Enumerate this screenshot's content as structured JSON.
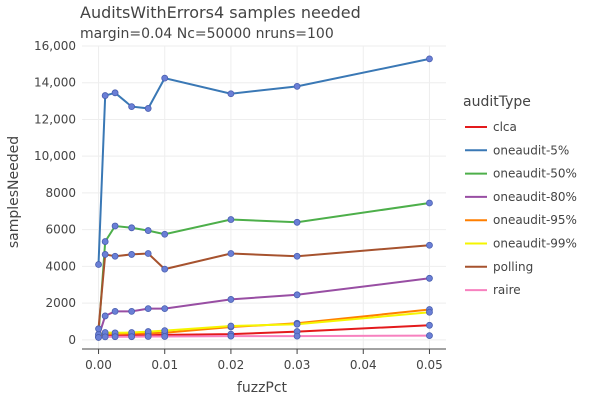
{
  "chart_data": {
    "type": "line",
    "title": "AuditsWithErrors4 samples needed",
    "subtitle": "margin=0.04 Nc=50000 nruns=100",
    "xlabel": "fuzzPct",
    "ylabel": "samplesNeeded",
    "xlim": [
      -0.0025,
      0.0525
    ],
    "ylim": [
      -500,
      16000
    ],
    "xticks": [
      0,
      0.01,
      0.02,
      0.03,
      0.04,
      0.05
    ],
    "xtick_labels": [
      "0.00",
      "0.01",
      "0.02",
      "0.03",
      "0.04",
      "0.05"
    ],
    "yticks": [
      0,
      2000,
      4000,
      6000,
      8000,
      10000,
      12000,
      14000,
      16000
    ],
    "ytick_labels": [
      "0",
      "2000",
      "4000",
      "6000",
      "8000",
      "10,000",
      "12,000",
      "14,000",
      "16,000"
    ],
    "legend_title": "auditType",
    "legend_position": "right",
    "grid": true,
    "x": [
      0,
      0.001,
      0.0025,
      0.005,
      0.0075,
      0.01,
      0.02,
      0.03,
      0.05
    ],
    "series": [
      {
        "name": "clca",
        "color": "#e31a1c",
        "values": [
          150,
          200,
          220,
          240,
          250,
          270,
          310,
          450,
          790
        ]
      },
      {
        "name": "oneaudit-5%",
        "color": "#3a78b5",
        "values": [
          4100,
          13300,
          13450,
          12700,
          12600,
          14250,
          13400,
          13800,
          15300
        ]
      },
      {
        "name": "oneaudit-50%",
        "color": "#4daf4a",
        "values": [
          250,
          5350,
          6200,
          6100,
          5950,
          5750,
          6550,
          6400,
          7450
        ]
      },
      {
        "name": "oneaudit-80%",
        "color": "#984ea3",
        "values": [
          160,
          1300,
          1550,
          1550,
          1700,
          1700,
          2200,
          2450,
          3350
        ]
      },
      {
        "name": "oneaudit-95%",
        "color": "#ff7f00",
        "values": [
          140,
          300,
          320,
          340,
          360,
          380,
          700,
          900,
          1650
        ]
      },
      {
        "name": "oneaudit-99%",
        "color": "#f5f500",
        "values": [
          300,
          400,
          380,
          400,
          450,
          500,
          750,
          850,
          1500
        ]
      },
      {
        "name": "polling",
        "color": "#a6522e",
        "values": [
          600,
          4650,
          4550,
          4650,
          4700,
          3850,
          4700,
          4550,
          5150
        ]
      },
      {
        "name": "raire",
        "color": "#f781bf",
        "values": [
          130,
          160,
          170,
          170,
          180,
          180,
          200,
          200,
          230
        ]
      }
    ]
  }
}
